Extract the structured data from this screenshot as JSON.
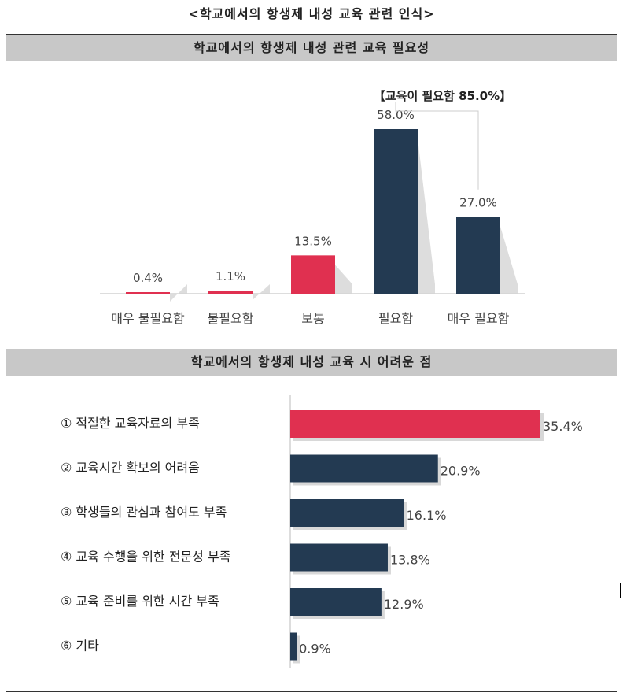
{
  "page_title": "<학교에서의 항생제 내성 교육 관련 인식>",
  "colors": {
    "accent": "#e03050",
    "primary": "#233a52",
    "header_bg": "#c8c8c8"
  },
  "chart_data": [
    {
      "type": "bar",
      "title": "학교에서의 항생제 내성 관련 교육 필요성",
      "categories": [
        "매우 불필요함",
        "불필요함",
        "보통",
        "필요함",
        "매우 필요함"
      ],
      "values": [
        0.4,
        1.1,
        13.5,
        58.0,
        27.0
      ],
      "value_labels": [
        "0.4%",
        "1.1%",
        "13.5%",
        "58.0%",
        "27.0%"
      ],
      "highlight": [
        "accent",
        "accent",
        "accent",
        "primary",
        "primary"
      ],
      "annotation": "【교육이 필요함 85.0%】",
      "ylim": [
        0,
        65
      ],
      "grid": false
    },
    {
      "type": "bar",
      "orientation": "horizontal",
      "title": "학교에서의 항생제 내성 교육 시 어려운 점",
      "categories": [
        "① 적절한 교육자료의 부족",
        "② 교육시간 확보의 어려움",
        "③ 학생들의 관심과 참여도 부족",
        "④ 교육 수행을 위한 전문성 부족",
        "⑤ 교육 준비를 위한 시간 부족",
        "⑥ 기타"
      ],
      "values": [
        35.4,
        20.9,
        16.1,
        13.8,
        12.9,
        0.9
      ],
      "value_labels": [
        "35.4%",
        "20.9%",
        "16.1%",
        "13.8%",
        "12.9%",
        "0.9%"
      ],
      "highlight": [
        "accent",
        "primary",
        "primary",
        "primary",
        "primary",
        "primary"
      ],
      "xlim": [
        0,
        36
      ],
      "grid": false
    }
  ]
}
